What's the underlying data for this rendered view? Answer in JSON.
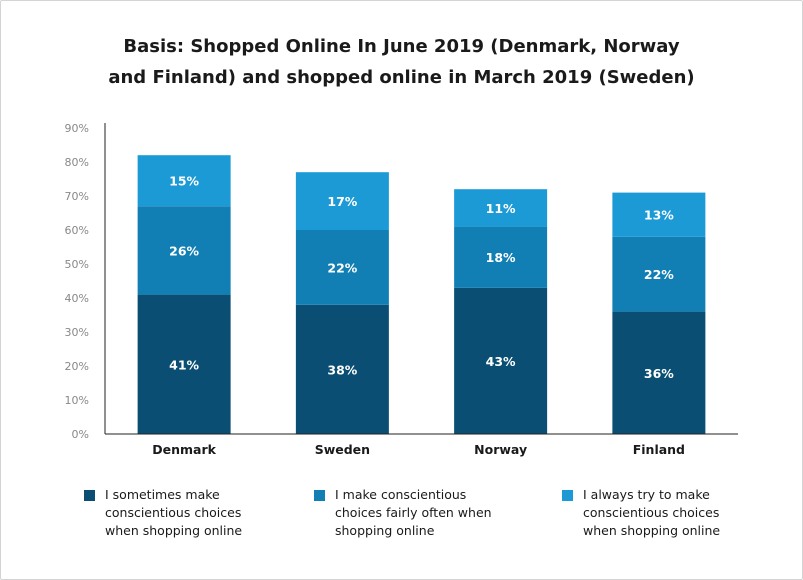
{
  "title_line1": "Basis: Shopped Online In June 2019 (Denmark, Norway",
  "title_line2": "and Finland) and shopped online in March 2019 (Sweden)",
  "chart_data": {
    "type": "bar",
    "stacked": true,
    "categories": [
      "Denmark",
      "Sweden",
      "Norway",
      "Finland"
    ],
    "series": [
      {
        "name": "I sometimes make conscientious choices when shopping online",
        "values": [
          41,
          38,
          43,
          36
        ],
        "labels": [
          "41%",
          "38%",
          "43%",
          "36%"
        ],
        "color": "#0a4f73"
      },
      {
        "name": "I make conscientious choices fairly often when shopping online",
        "values": [
          26,
          22,
          18,
          22
        ],
        "labels": [
          "26%",
          "22%",
          "18%",
          "22%"
        ],
        "color": "#127fb4"
      },
      {
        "name": "I always try to make conscientious choices when shopping online",
        "values": [
          15,
          17,
          11,
          13
        ],
        "labels": [
          "15%",
          "17%",
          "11%",
          "13%"
        ],
        "color": "#1c9ad6"
      }
    ],
    "ylim": [
      0,
      90
    ],
    "yticks": [
      "0%",
      "10%",
      "20%",
      "30%",
      "40%",
      "50%",
      "60%",
      "70%",
      "80%",
      "90%"
    ],
    "grid": false,
    "legend_position": "bottom"
  },
  "legend": [
    {
      "line1": "I sometimes make",
      "line2": "conscientious choices",
      "line3": "when shopping online",
      "color": "#0a4f73"
    },
    {
      "line1": "I make conscientious",
      "line2": "choices fairly often when",
      "line3": "shopping online",
      "color": "#127fb4"
    },
    {
      "line1": "I always try to make",
      "line2": "conscientious choices",
      "line3": "when shopping online",
      "color": "#1c9ad6"
    }
  ]
}
